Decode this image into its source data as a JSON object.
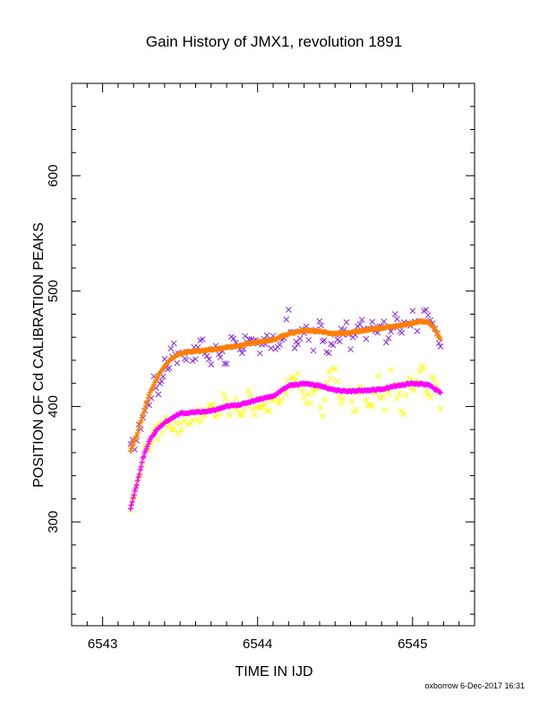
{
  "chart_data": {
    "type": "scatter",
    "title": "Gain History of JMX1, revolution 1891",
    "xlabel": "TIME IN IJD",
    "ylabel": "POSITION OF Cd CALIBRATION PEAKS",
    "xlim": [
      6542.8,
      6545.4
    ],
    "ylim": [
      210,
      680
    ],
    "x_ticks": [
      6543,
      6544,
      6545
    ],
    "y_ticks": [
      300,
      400,
      500,
      600
    ],
    "grid": false,
    "legend": "none",
    "series": [
      {
        "color": "#8a2be2",
        "marker": "x",
        "scatter": true,
        "points": [
          [
            6543.18,
            362
          ],
          [
            6543.22,
            372
          ],
          [
            6543.26,
            392
          ],
          [
            6543.3,
            405
          ],
          [
            6543.33,
            420
          ],
          [
            6543.36,
            415
          ],
          [
            6543.38,
            425
          ],
          [
            6543.4,
            438
          ],
          [
            6543.42,
            435
          ],
          [
            6543.44,
            445
          ],
          [
            6543.46,
            450
          ],
          [
            6543.48,
            442
          ],
          [
            6543.5,
            448
          ],
          [
            6543.53,
            440
          ],
          [
            6543.55,
            452
          ],
          [
            6543.58,
            446
          ],
          [
            6543.6,
            443
          ],
          [
            6543.63,
            456
          ],
          [
            6543.66,
            449
          ],
          [
            6543.7,
            438
          ],
          [
            6543.73,
            454
          ],
          [
            6543.76,
            447
          ],
          [
            6543.8,
            441
          ],
          [
            6543.83,
            456
          ],
          [
            6543.86,
            450
          ],
          [
            6543.9,
            445
          ],
          [
            6543.93,
            459
          ],
          [
            6543.96,
            463
          ],
          [
            6544.0,
            452
          ],
          [
            6544.03,
            448
          ],
          [
            6544.06,
            461
          ],
          [
            6544.1,
            455
          ],
          [
            6544.13,
            447
          ],
          [
            6544.17,
            465
          ],
          [
            6544.2,
            479
          ],
          [
            6544.23,
            458
          ],
          [
            6544.26,
            452
          ],
          [
            6544.3,
            468
          ],
          [
            6544.33,
            463
          ],
          [
            6544.36,
            455
          ],
          [
            6544.4,
            470
          ],
          [
            6544.43,
            458
          ],
          [
            6544.46,
            450
          ],
          [
            6544.5,
            465
          ],
          [
            6544.53,
            460
          ],
          [
            6544.56,
            472
          ],
          [
            6544.6,
            456
          ],
          [
            6544.63,
            468
          ],
          [
            6544.66,
            473
          ],
          [
            6544.7,
            460
          ],
          [
            6544.73,
            470
          ],
          [
            6544.76,
            464
          ],
          [
            6544.8,
            476
          ],
          [
            6544.83,
            462
          ],
          [
            6544.86,
            470
          ],
          [
            6544.9,
            475
          ],
          [
            6544.93,
            464
          ],
          [
            6544.96,
            472
          ],
          [
            6545.0,
            478
          ],
          [
            6545.03,
            466
          ],
          [
            6545.06,
            475
          ],
          [
            6545.1,
            481
          ],
          [
            6545.13,
            470
          ],
          [
            6545.16,
            458
          ],
          [
            6545.18,
            452
          ]
        ]
      },
      {
        "color": "#ff7f00",
        "marker": "+",
        "scatter": false,
        "points": [
          [
            6543.18,
            362
          ],
          [
            6543.22,
            375
          ],
          [
            6543.26,
            393
          ],
          [
            6543.3,
            410
          ],
          [
            6543.35,
            425
          ],
          [
            6543.4,
            435
          ],
          [
            6543.45,
            442
          ],
          [
            6543.5,
            446
          ],
          [
            6543.6,
            448
          ],
          [
            6543.7,
            449
          ],
          [
            6543.8,
            451
          ],
          [
            6543.9,
            453
          ],
          [
            6544.0,
            456
          ],
          [
            6544.1,
            458
          ],
          [
            6544.2,
            463
          ],
          [
            6544.3,
            466
          ],
          [
            6544.4,
            465
          ],
          [
            6544.5,
            463
          ],
          [
            6544.6,
            464
          ],
          [
            6544.7,
            466
          ],
          [
            6544.8,
            468
          ],
          [
            6544.9,
            470
          ],
          [
            6545.0,
            472
          ],
          [
            6545.05,
            474
          ],
          [
            6545.1,
            473
          ],
          [
            6545.14,
            468
          ],
          [
            6545.18,
            458
          ]
        ]
      },
      {
        "color": "#ffff00",
        "marker": "x",
        "scatter": true,
        "points": [
          [
            6543.18,
            312
          ],
          [
            6543.22,
            330
          ],
          [
            6543.26,
            355
          ],
          [
            6543.3,
            368
          ],
          [
            6543.34,
            376
          ],
          [
            6543.38,
            382
          ],
          [
            6543.42,
            388
          ],
          [
            6543.46,
            384
          ],
          [
            6543.5,
            380
          ],
          [
            6543.54,
            392
          ],
          [
            6543.58,
            386
          ],
          [
            6543.62,
            396
          ],
          [
            6543.66,
            389
          ],
          [
            6543.7,
            400
          ],
          [
            6543.74,
            392
          ],
          [
            6543.78,
            405
          ],
          [
            6543.82,
            396
          ],
          [
            6543.86,
            401
          ],
          [
            6543.9,
            395
          ],
          [
            6543.94,
            408
          ],
          [
            6543.98,
            399
          ],
          [
            6544.02,
            404
          ],
          [
            6544.06,
            392
          ],
          [
            6544.1,
            410
          ],
          [
            6544.14,
            398
          ],
          [
            6544.18,
            416
          ],
          [
            6544.22,
            425
          ],
          [
            6544.26,
            430
          ],
          [
            6544.3,
            412
          ],
          [
            6544.34,
            405
          ],
          [
            6544.38,
            420
          ],
          [
            6544.42,
            395
          ],
          [
            6544.46,
            425
          ],
          [
            6544.5,
            432
          ],
          [
            6544.54,
            402
          ],
          [
            6544.58,
            415
          ],
          [
            6544.62,
            395
          ],
          [
            6544.66,
            420
          ],
          [
            6544.7,
            410
          ],
          [
            6544.74,
            400
          ],
          [
            6544.78,
            422
          ],
          [
            6544.82,
            398
          ],
          [
            6544.86,
            428
          ],
          [
            6544.9,
            410
          ],
          [
            6544.94,
            395
          ],
          [
            6544.98,
            425
          ],
          [
            6545.02,
            415
          ],
          [
            6545.06,
            438
          ],
          [
            6545.1,
            405
          ],
          [
            6545.14,
            428
          ],
          [
            6545.18,
            398
          ]
        ]
      },
      {
        "color": "#ff00ff",
        "marker": "+",
        "scatter": false,
        "points": [
          [
            6543.18,
            312
          ],
          [
            6543.22,
            332
          ],
          [
            6543.26,
            355
          ],
          [
            6543.3,
            370
          ],
          [
            6543.35,
            380
          ],
          [
            6543.4,
            386
          ],
          [
            6543.45,
            390
          ],
          [
            6543.5,
            394
          ],
          [
            6543.6,
            395
          ],
          [
            6543.7,
            396
          ],
          [
            6543.8,
            400
          ],
          [
            6543.9,
            402
          ],
          [
            6544.0,
            406
          ],
          [
            6544.1,
            409
          ],
          [
            6544.2,
            418
          ],
          [
            6544.3,
            420
          ],
          [
            6544.4,
            418
          ],
          [
            6544.5,
            414
          ],
          [
            6544.6,
            413
          ],
          [
            6544.7,
            414
          ],
          [
            6544.8,
            415
          ],
          [
            6544.9,
            418
          ],
          [
            6545.0,
            420
          ],
          [
            6545.1,
            419
          ],
          [
            6545.18,
            412
          ]
        ]
      }
    ]
  },
  "footer": "oxborrow 6-Dec-2017 16:31"
}
